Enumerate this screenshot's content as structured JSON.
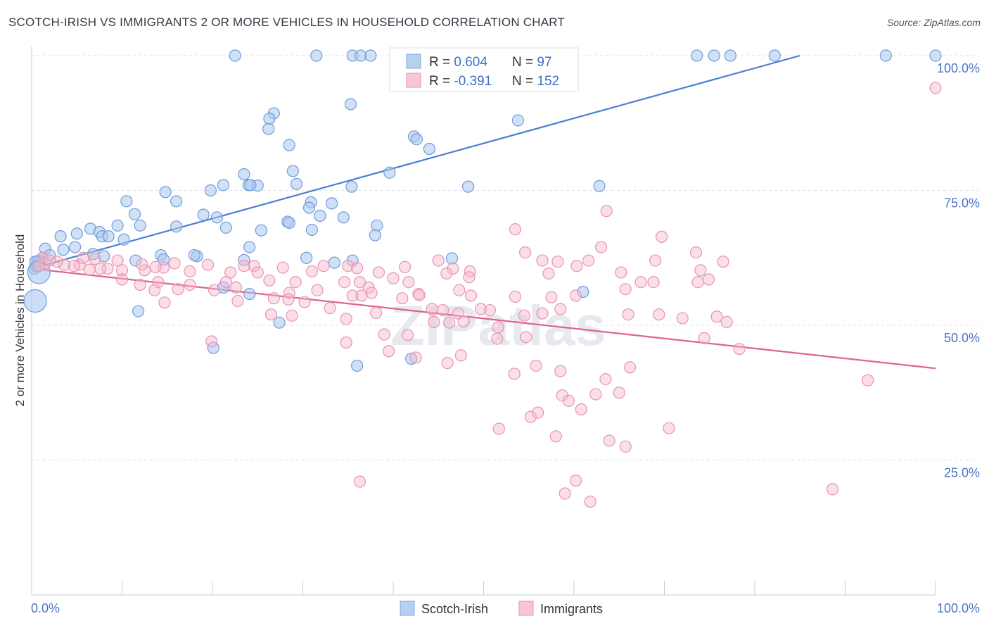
{
  "title": "SCOTCH-IRISH VS IMMIGRANTS 2 OR MORE VEHICLES IN HOUSEHOLD CORRELATION CHART",
  "source": "Source: ZipAtlas.com",
  "watermark": "ZIPatlas",
  "colors": {
    "blue": "#4a7fd4",
    "blue_fill": "#a9c8ee",
    "pink": "#e0628d",
    "pink_fill": "#f6b9cc",
    "axis_text": "#4a74c4"
  },
  "legend": {
    "blue": {
      "r_label": "R = ",
      "r_value": "0.604",
      "n_label": "N = ",
      "n_value": "97"
    },
    "pink": {
      "r_label": "R = ",
      "r_value": "-0.391",
      "n_label": "N = ",
      "n_value": "152"
    }
  },
  "bottom_legend": [
    "Scotch-Irish",
    "Immigrants"
  ],
  "chart_data": {
    "type": "scatter",
    "title": "SCOTCH-IRISH VS IMMIGRANTS 2 OR MORE VEHICLES IN HOUSEHOLD CORRELATION CHART",
    "xlabel": "",
    "ylabel": "2 or more Vehicles in Household",
    "x_tick_labels": [
      "0.0%",
      "100.0%"
    ],
    "y_tick_labels": [
      "25.0%",
      "50.0%",
      "75.0%",
      "100.0%"
    ],
    "xlim": [
      0,
      100
    ],
    "ylim": [
      0,
      100
    ],
    "grid": true,
    "series": [
      {
        "name": "Scotch-Irish",
        "color": "#4a7fd4",
        "trend": {
          "x": [
            0,
            85
          ],
          "y": [
            60.5,
            100
          ]
        },
        "points": [
          [
            22.5,
            100
          ],
          [
            31.5,
            100
          ],
          [
            35.5,
            100
          ],
          [
            36.4,
            100
          ],
          [
            37.5,
            100
          ],
          [
            52.5,
            100
          ],
          [
            55.4,
            100
          ],
          [
            73.6,
            100
          ],
          [
            75.5,
            100
          ],
          [
            77.3,
            100
          ],
          [
            82.2,
            100
          ],
          [
            94.5,
            100
          ],
          [
            100,
            100
          ],
          [
            35.3,
            91
          ],
          [
            26.8,
            89.3
          ],
          [
            26.3,
            88.3
          ],
          [
            26.2,
            86.4
          ],
          [
            28.5,
            83.4
          ],
          [
            42.3,
            85
          ],
          [
            42.6,
            84.5
          ],
          [
            44,
            82.7
          ],
          [
            53.8,
            88
          ],
          [
            28.9,
            78.6
          ],
          [
            39.6,
            78.3
          ],
          [
            23.5,
            78
          ],
          [
            24,
            76
          ],
          [
            25,
            75.9
          ],
          [
            29.3,
            76.2
          ],
          [
            24.2,
            76
          ],
          [
            21.2,
            76
          ],
          [
            35.4,
            75.7
          ],
          [
            48.3,
            75.7
          ],
          [
            62.8,
            75.8
          ],
          [
            10.5,
            73
          ],
          [
            14.8,
            74.7
          ],
          [
            19.8,
            75
          ],
          [
            16,
            73
          ],
          [
            30.9,
            72.8
          ],
          [
            33.2,
            72.6
          ],
          [
            30.7,
            71.8
          ],
          [
            19,
            70.5
          ],
          [
            20.5,
            70
          ],
          [
            11.4,
            70.6
          ],
          [
            31.9,
            70.3
          ],
          [
            34.5,
            70
          ],
          [
            28.3,
            69.2
          ],
          [
            28.5,
            69
          ],
          [
            9.5,
            68.5
          ],
          [
            12,
            68.5
          ],
          [
            16,
            68.3
          ],
          [
            21.5,
            68.1
          ],
          [
            25.4,
            67.6
          ],
          [
            31,
            67.7
          ],
          [
            38.2,
            68.5
          ],
          [
            38,
            66.7
          ],
          [
            3.2,
            66.5
          ],
          [
            5,
            67
          ],
          [
            6.5,
            67.9
          ],
          [
            7.5,
            67.3
          ],
          [
            7.8,
            66.5
          ],
          [
            8.5,
            66.5
          ],
          [
            10.2,
            65.9
          ],
          [
            4.8,
            64.5
          ],
          [
            3.5,
            64
          ],
          [
            1.5,
            64.2
          ],
          [
            2,
            63
          ],
          [
            1.2,
            62.5
          ],
          [
            0.8,
            62
          ],
          [
            0.6,
            61.8
          ],
          [
            6.8,
            63.2
          ],
          [
            8,
            62.8
          ],
          [
            11.5,
            62
          ],
          [
            14.3,
            63
          ],
          [
            18.3,
            62.8
          ],
          [
            18,
            63
          ],
          [
            14.6,
            62.2
          ],
          [
            23.5,
            62.1
          ],
          [
            24.1,
            64.5
          ],
          [
            30.4,
            62.5
          ],
          [
            35.5,
            62
          ],
          [
            33.5,
            61.6
          ],
          [
            46.5,
            62.4
          ],
          [
            0.3,
            60.5
          ],
          [
            0.5,
            61
          ],
          [
            0.4,
            61.8
          ],
          [
            21.2,
            57
          ],
          [
            24.1,
            55.8
          ],
          [
            11.8,
            52.6
          ],
          [
            27.4,
            50.5
          ],
          [
            20.1,
            45.8
          ],
          [
            36,
            42.5
          ],
          [
            42,
            43.8
          ],
          [
            61,
            56.2
          ]
        ],
        "big_points": [
          [
            0.8,
            59.8
          ],
          [
            0.4,
            54.5
          ]
        ]
      },
      {
        "name": "Immigrants",
        "color": "#e0628d",
        "trend": {
          "x": [
            0,
            100
          ],
          "y": [
            60.5,
            42
          ]
        },
        "points": [
          [
            100,
            94
          ],
          [
            63.6,
            71.2
          ],
          [
            53.5,
            67.8
          ],
          [
            69.7,
            66.4
          ],
          [
            63,
            64.5
          ],
          [
            54.6,
            63.5
          ],
          [
            73.5,
            63.5
          ],
          [
            56.5,
            62
          ],
          [
            58.2,
            61.8
          ],
          [
            61.6,
            62
          ],
          [
            69,
            62
          ],
          [
            76.5,
            61.8
          ],
          [
            45,
            62
          ],
          [
            35,
            61
          ],
          [
            24.6,
            61
          ],
          [
            19.5,
            61.2
          ],
          [
            15.8,
            61.5
          ],
          [
            14.6,
            60.7
          ],
          [
            13.7,
            60.8
          ],
          [
            12.5,
            60.2
          ],
          [
            10,
            60.2
          ],
          [
            8.4,
            60.5
          ],
          [
            7.6,
            60.5
          ],
          [
            6.4,
            60.3
          ],
          [
            5.3,
            61.2
          ],
          [
            4.7,
            61
          ],
          [
            3.6,
            61.2
          ],
          [
            2.8,
            61.8
          ],
          [
            1.5,
            61.5
          ],
          [
            0.8,
            61
          ],
          [
            1.2,
            62.5
          ],
          [
            2,
            62
          ],
          [
            5.7,
            62.5
          ],
          [
            7,
            62.3
          ],
          [
            9.5,
            62
          ],
          [
            12.2,
            61.3
          ],
          [
            23.5,
            61
          ],
          [
            27.8,
            60.7
          ],
          [
            32.3,
            61
          ],
          [
            36,
            60.6
          ],
          [
            41.3,
            60.8
          ],
          [
            46.6,
            60.5
          ],
          [
            48.5,
            60
          ],
          [
            60.3,
            61
          ],
          [
            74,
            60.2
          ],
          [
            17.5,
            60
          ],
          [
            22,
            59.8
          ],
          [
            25,
            59.8
          ],
          [
            31,
            60
          ],
          [
            38.4,
            59.8
          ],
          [
            45.9,
            59.6
          ],
          [
            57.2,
            59.6
          ],
          [
            65.2,
            59.8
          ],
          [
            67.4,
            58
          ],
          [
            73.7,
            58
          ],
          [
            74.9,
            58.5
          ],
          [
            10,
            58.5
          ],
          [
            12,
            57.5
          ],
          [
            14,
            58
          ],
          [
            17.5,
            57.5
          ],
          [
            21.5,
            58
          ],
          [
            22.6,
            57
          ],
          [
            26.3,
            58.3
          ],
          [
            29.2,
            58
          ],
          [
            34.6,
            58
          ],
          [
            36.3,
            58
          ],
          [
            37.3,
            57
          ],
          [
            40,
            58.7
          ],
          [
            41.7,
            58
          ],
          [
            48.4,
            58.9
          ],
          [
            13.6,
            56.5
          ],
          [
            16.2,
            56.7
          ],
          [
            20.2,
            56.5
          ],
          [
            28.5,
            56
          ],
          [
            31.6,
            56.5
          ],
          [
            35.5,
            55.5
          ],
          [
            37.6,
            56
          ],
          [
            42.8,
            55.8
          ],
          [
            47.3,
            56.5
          ],
          [
            48.6,
            55.5
          ],
          [
            53.5,
            55.3
          ],
          [
            57.5,
            55.2
          ],
          [
            60.2,
            55.5
          ],
          [
            65.7,
            56.7
          ],
          [
            68.8,
            58
          ],
          [
            14.7,
            54.2
          ],
          [
            22.8,
            54.5
          ],
          [
            26.8,
            55
          ],
          [
            28.4,
            54.8
          ],
          [
            30.2,
            54.3
          ],
          [
            33,
            53.2
          ],
          [
            36.5,
            55.5
          ],
          [
            41,
            55
          ],
          [
            42.9,
            55.6
          ],
          [
            44.3,
            53
          ],
          [
            45.5,
            52.8
          ],
          [
            47.2,
            52.2
          ],
          [
            49.7,
            53
          ],
          [
            50.7,
            52.8
          ],
          [
            54.5,
            51.8
          ],
          [
            58.5,
            53
          ],
          [
            66,
            52
          ],
          [
            69.4,
            52
          ],
          [
            26.5,
            52
          ],
          [
            28.8,
            51.8
          ],
          [
            34.8,
            51.2
          ],
          [
            38.1,
            52.3
          ],
          [
            44.5,
            50.6
          ],
          [
            46.2,
            50.5
          ],
          [
            47.8,
            50.7
          ],
          [
            51.6,
            49.6
          ],
          [
            56.5,
            52.2
          ],
          [
            72,
            51.3
          ],
          [
            75.8,
            51.6
          ],
          [
            76.9,
            50.6
          ],
          [
            41.6,
            48.2
          ],
          [
            39,
            48.3
          ],
          [
            51.5,
            47.5
          ],
          [
            54.7,
            47.8
          ],
          [
            74.4,
            47.6
          ],
          [
            19.9,
            47
          ],
          [
            34.8,
            46.8
          ],
          [
            39.5,
            45.2
          ],
          [
            47.5,
            44.4
          ],
          [
            42.5,
            44
          ],
          [
            46,
            43
          ],
          [
            55.8,
            42.5
          ],
          [
            58.5,
            41.5
          ],
          [
            63.5,
            40
          ],
          [
            66.2,
            42.2
          ],
          [
            53.4,
            41
          ],
          [
            58.7,
            37
          ],
          [
            59.4,
            36
          ],
          [
            62.4,
            37.2
          ],
          [
            65,
            37.5
          ],
          [
            60.8,
            34.4
          ],
          [
            55.2,
            33
          ],
          [
            56,
            33.8
          ],
          [
            51.7,
            30.8
          ],
          [
            70.5,
            30.9
          ],
          [
            58,
            29.4
          ],
          [
            63.9,
            28.6
          ],
          [
            65.7,
            27.5
          ],
          [
            92.5,
            39.8
          ],
          [
            78.3,
            45.6
          ],
          [
            36.3,
            21
          ],
          [
            60.2,
            21.2
          ],
          [
            59,
            18.8
          ],
          [
            61.8,
            17.3
          ],
          [
            88.6,
            19.6
          ]
        ]
      }
    ]
  }
}
